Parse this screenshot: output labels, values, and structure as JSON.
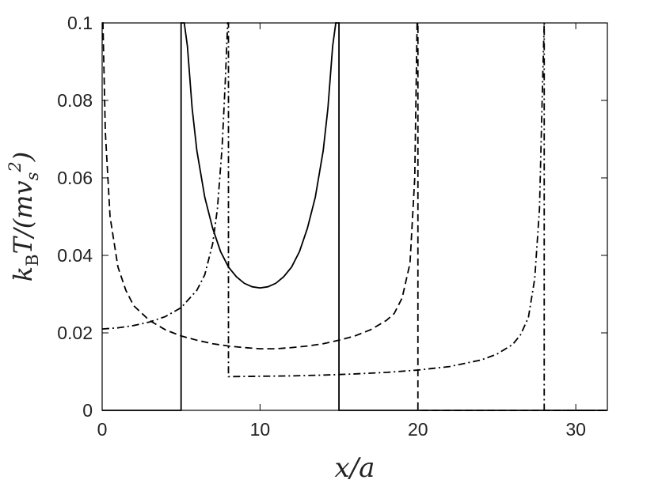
{
  "chart_data": {
    "type": "line",
    "title": "",
    "xlabel": "x/a",
    "ylabel": "k_B T/(m v_s^2)",
    "xlim": [
      0,
      32
    ],
    "ylim": [
      0,
      0.1
    ],
    "x_ticks": [
      0,
      10,
      20,
      30
    ],
    "y_ticks": [
      0,
      0.02,
      0.04,
      0.06,
      0.08,
      0.1
    ],
    "x_tick_labels": [
      "0",
      "10",
      "20",
      "30"
    ],
    "y_tick_labels": [
      "0",
      "0.02",
      "0.04",
      "0.06",
      "0.08",
      "0.1"
    ],
    "grid": false,
    "legend": "none",
    "series": [
      {
        "style": "solid",
        "color": "#000000",
        "x": [
          0,
          5,
          5,
          5.05,
          5.1,
          5.2,
          5.4,
          5.7,
          6,
          6.5,
          7,
          7.5,
          8,
          8.5,
          9,
          9.5,
          10,
          10.5,
          11,
          11.5,
          12,
          12.5,
          13,
          13.5,
          14,
          14.3,
          14.6,
          14.8,
          14.9,
          14.95,
          15,
          15,
          32
        ],
        "y": [
          0,
          0,
          0.1,
          0.1,
          0.1,
          0.1,
          0.094,
          0.078,
          0.067,
          0.055,
          0.047,
          0.041,
          0.037,
          0.0345,
          0.0328,
          0.0319,
          0.0316,
          0.0319,
          0.0328,
          0.0345,
          0.037,
          0.041,
          0.047,
          0.055,
          0.067,
          0.078,
          0.094,
          0.1,
          0.1,
          0.1,
          0.1,
          0,
          0
        ]
      },
      {
        "style": "dashed",
        "color": "#000000",
        "x": [
          0,
          0.05,
          0.2,
          0.5,
          1,
          1.5,
          2,
          3,
          4,
          5,
          6,
          7,
          8,
          9,
          10,
          11,
          12,
          13,
          14,
          15,
          16,
          17,
          18,
          18.5,
          19,
          19.5,
          19.8,
          19.95,
          20,
          20,
          32
        ],
        "y": [
          0.1,
          0.1,
          0.072,
          0.05,
          0.037,
          0.031,
          0.027,
          0.0232,
          0.0208,
          0.0192,
          0.0181,
          0.0172,
          0.0166,
          0.0162,
          0.0159,
          0.0159,
          0.0162,
          0.0166,
          0.0172,
          0.0181,
          0.0192,
          0.0208,
          0.0232,
          0.025,
          0.029,
          0.038,
          0.06,
          0.1,
          0.1,
          0,
          0
        ]
      },
      {
        "style": "dashdot",
        "color": "#000000",
        "x": [
          0,
          1,
          2,
          3,
          4,
          5,
          6,
          6.5,
          7,
          7.3,
          7.6,
          7.8,
          7.95,
          8,
          8,
          10,
          12,
          14,
          16,
          18,
          20,
          22,
          24,
          25,
          26,
          26.5,
          27,
          27.4,
          27.7,
          27.9,
          28,
          28,
          32
        ],
        "y": [
          0.021,
          0.0213,
          0.0219,
          0.0228,
          0.0242,
          0.0265,
          0.031,
          0.035,
          0.043,
          0.052,
          0.068,
          0.085,
          0.1,
          0.1,
          0.0087,
          0.0088,
          0.0089,
          0.0091,
          0.0094,
          0.0098,
          0.0104,
          0.0113,
          0.013,
          0.0145,
          0.017,
          0.0195,
          0.024,
          0.034,
          0.052,
          0.085,
          0.1,
          0,
          0
        ]
      }
    ]
  }
}
